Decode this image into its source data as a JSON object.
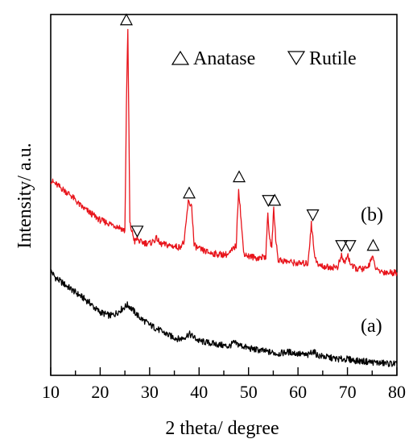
{
  "chart_data": {
    "type": "line",
    "xlabel": "2 theta/ degree",
    "ylabel": "Intensity/ a.u.",
    "xlim": [
      10,
      80
    ],
    "ylim": [
      0,
      1
    ],
    "x_ticks": [
      10,
      20,
      30,
      40,
      50,
      60,
      70,
      80
    ],
    "legend": {
      "placement": "top-right",
      "entries": [
        {
          "symbol": "up-triangle",
          "label": "Anatase"
        },
        {
          "symbol": "down-triangle",
          "label": "Rutile"
        }
      ]
    },
    "series": [
      {
        "label": "(a)",
        "color": "#000000",
        "x": [
          10,
          11,
          12,
          13,
          14,
          15,
          16,
          17,
          18,
          19,
          20,
          21,
          22,
          23,
          24,
          25,
          25.5,
          26,
          27,
          28,
          29,
          30,
          32,
          34,
          36,
          37,
          38,
          39,
          40,
          42,
          44,
          46,
          47,
          48,
          50,
          52,
          54,
          56,
          58,
          60,
          62,
          63,
          64,
          66,
          68,
          70,
          72,
          74,
          76,
          78,
          80
        ],
        "y": [
          0.29,
          0.27,
          0.26,
          0.25,
          0.24,
          0.23,
          0.22,
          0.21,
          0.2,
          0.185,
          0.175,
          0.17,
          0.165,
          0.17,
          0.18,
          0.19,
          0.195,
          0.19,
          0.175,
          0.16,
          0.15,
          0.14,
          0.125,
          0.11,
          0.1,
          0.105,
          0.115,
          0.105,
          0.095,
          0.09,
          0.085,
          0.08,
          0.09,
          0.085,
          0.075,
          0.07,
          0.065,
          0.06,
          0.065,
          0.06,
          0.055,
          0.068,
          0.055,
          0.05,
          0.045,
          0.045,
          0.04,
          0.038,
          0.035,
          0.033,
          0.032
        ]
      },
      {
        "label": "(b)",
        "color": "#e8141b",
        "x": [
          10,
          12,
          14,
          16,
          18,
          20,
          22,
          24,
          25,
          25.3,
          25.6,
          26,
          27,
          27.5,
          28,
          30,
          31.5,
          32,
          34,
          36,
          37,
          37.8,
          38.5,
          39,
          40,
          42,
          44,
          46,
          47.5,
          48,
          48.5,
          49,
          50,
          52,
          53.5,
          53.9,
          54.3,
          54.7,
          55.1,
          55.5,
          56,
          58,
          60,
          62,
          62.7,
          63.3,
          64,
          66,
          68,
          68.8,
          69.5,
          70,
          70.5,
          71,
          72,
          74,
          75,
          75.4,
          76,
          78,
          80
        ],
        "y": [
          0.54,
          0.52,
          0.5,
          0.47,
          0.45,
          0.43,
          0.42,
          0.41,
          0.4,
          0.75,
          0.96,
          0.42,
          0.37,
          0.38,
          0.37,
          0.365,
          0.38,
          0.365,
          0.36,
          0.355,
          0.37,
          0.48,
          0.47,
          0.36,
          0.35,
          0.34,
          0.335,
          0.335,
          0.36,
          0.52,
          0.43,
          0.34,
          0.33,
          0.325,
          0.33,
          0.45,
          0.37,
          0.36,
          0.46,
          0.38,
          0.32,
          0.315,
          0.31,
          0.31,
          0.42,
          0.34,
          0.305,
          0.3,
          0.3,
          0.33,
          0.31,
          0.335,
          0.315,
          0.3,
          0.295,
          0.295,
          0.33,
          0.31,
          0.29,
          0.285,
          0.285
        ]
      }
    ],
    "annotations": [
      {
        "symbol": "up-triangle",
        "x": 25.3,
        "y": 0.985
      },
      {
        "symbol": "down-triangle",
        "x": 27.5,
        "y": 0.4
      },
      {
        "symbol": "up-triangle",
        "x": 38,
        "y": 0.505
      },
      {
        "symbol": "up-triangle",
        "x": 48.1,
        "y": 0.55
      },
      {
        "symbol": "down-triangle",
        "x": 54,
        "y": 0.485
      },
      {
        "symbol": "up-triangle",
        "x": 55.3,
        "y": 0.485
      },
      {
        "symbol": "down-triangle",
        "x": 63,
        "y": 0.445
      },
      {
        "symbol": "down-triangle",
        "x": 68.8,
        "y": 0.36
      },
      {
        "symbol": "down-triangle",
        "x": 70.5,
        "y": 0.36
      },
      {
        "symbol": "up-triangle",
        "x": 75.2,
        "y": 0.36
      }
    ]
  }
}
